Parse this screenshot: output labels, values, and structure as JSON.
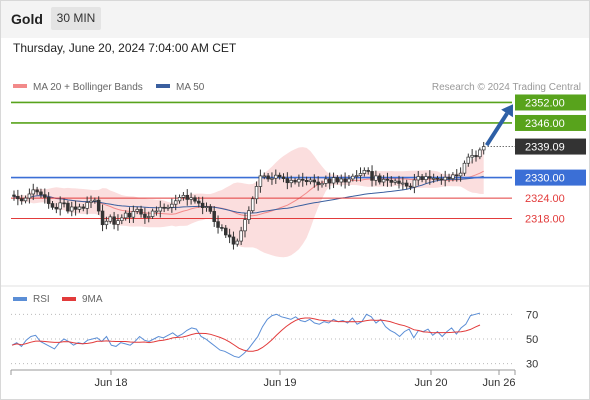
{
  "header": {
    "title": "Gold",
    "timeframe": "30 MIN",
    "datetime": "Thursday, June 20, 2024 7:04:00 AM CET"
  },
  "colors": {
    "candle": "#333333",
    "bollinger_fill": "#fbdede",
    "ma20": "#f28a8a",
    "ma50": "#3a5f9f",
    "resistance": "#58a31c",
    "pivot": "#3b6fd6",
    "support": "#e23b3b",
    "arrow": "#2d5fa6",
    "rsi": "#5b8ed6",
    "rsi_ma": "#e23b3b",
    "price_box": "#333333"
  },
  "chart_data": [
    {
      "type": "candlestick",
      "legend": [
        {
          "name": "MA 20 + Bollinger Bands",
          "color": "#f28a8a"
        },
        {
          "name": "MA 50",
          "color": "#3a5f9f"
        }
      ],
      "watermark": "Research © 2024 Trading Central",
      "ylim": [
        2300,
        2358
      ],
      "x_ticks": [
        "Jun 18",
        "Jun 19",
        "Jun 20",
        "Jun 26"
      ],
      "levels": [
        {
          "value": 2352.0,
          "label": "2352.00",
          "kind": "resistance"
        },
        {
          "value": 2346.0,
          "label": "2346.00",
          "kind": "resistance"
        },
        {
          "value": 2330.0,
          "label": "2330.00",
          "kind": "pivot"
        },
        {
          "value": 2324.0,
          "label": "2324.00",
          "kind": "support"
        },
        {
          "value": 2318.0,
          "label": "2318.00",
          "kind": "support"
        }
      ],
      "last_price": {
        "value": 2339.09,
        "label": "2339.09"
      },
      "arrow": {
        "from": 2339.5,
        "to": 2351.5,
        "direction": "up"
      },
      "close_series": [
        2324.5,
        2323.8,
        2323.2,
        2324,
        2325.2,
        2326.4,
        2325.8,
        2325,
        2324.2,
        2322.4,
        2321.3,
        2320.8,
        2322.6,
        2322.5,
        2320.2,
        2321.4,
        2320.7,
        2321.4,
        2321,
        2322.7,
        2323.1,
        2323.4,
        2320.2,
        2316.2,
        2317.2,
        2318.5,
        2316.3,
        2317.4,
        2318.2,
        2319.6,
        2318.4,
        2320.1,
        2320.7,
        2319.3,
        2318.3,
        2318.6,
        2320.2,
        2320.2,
        2321.3,
        2321,
        2321.3,
        2322.2,
        2323.2,
        2324.2,
        2324.8,
        2323.6,
        2324.1,
        2323.1,
        2322.5,
        2321.2,
        2321.5,
        2320.1,
        2317.1,
        2315.4,
        2315.2,
        2313.2,
        2312.6,
        2310.5,
        2311.4,
        2314.4,
        2317.7,
        2320.3,
        2323.8,
        2327.4,
        2330.5,
        2330.5,
        2329.6,
        2329.8,
        2330.7,
        2330.2,
        2329.7,
        2328.5,
        2329.2,
        2328.7,
        2329.5,
        2329.2,
        2328.8,
        2329.3,
        2328.7,
        2327.9,
        2328.3,
        2329.6,
        2328.4,
        2330,
        2328.7,
        2329.6,
        2328.7,
        2329.6,
        2330.4,
        2330.6,
        2331.2,
        2332.1,
        2331.8,
        2329.2,
        2330.5,
        2328.7,
        2329.5,
        2329.2,
        2328.6,
        2329,
        2328.3,
        2328.4,
        2327.5,
        2327.2,
        2329.3,
        2330.3,
        2329.4,
        2330.3,
        2329.8,
        2329.8,
        2329.6,
        2329.3,
        2330.1,
        2329.7,
        2330.8,
        2330.5,
        2331.3,
        2334.2,
        2336,
        2336.5,
        2336.1,
        2338.1,
        2339.1
      ]
    },
    {
      "type": "line",
      "legend": [
        {
          "name": "RSI",
          "color": "#5b8ed6"
        },
        {
          "name": "9MA",
          "color": "#e23b3b"
        }
      ],
      "ylim": [
        20,
        80
      ],
      "y_ticks": [
        "70",
        "50",
        "30"
      ],
      "rsi_series": [
        45,
        47,
        44,
        49,
        52,
        53,
        48,
        46,
        44,
        42,
        47,
        50,
        48,
        45,
        47,
        46,
        49,
        50,
        51,
        48,
        52,
        45,
        44,
        47,
        46,
        45,
        48,
        52,
        49,
        48,
        50,
        52,
        51,
        53,
        55,
        52,
        54,
        57,
        59,
        58,
        52,
        50,
        47,
        44,
        41,
        40,
        38,
        36,
        35,
        38,
        42,
        47,
        52,
        60,
        66,
        69,
        70,
        68,
        67,
        66,
        68,
        65,
        64,
        66,
        63,
        62,
        64,
        63,
        66,
        64,
        65,
        63,
        67,
        62,
        64,
        70,
        68,
        63,
        66,
        60,
        57,
        55,
        52,
        56,
        58,
        51,
        57,
        56,
        58,
        53,
        56,
        52,
        56,
        59,
        54,
        59,
        62,
        69,
        70,
        71
      ]
    }
  ]
}
